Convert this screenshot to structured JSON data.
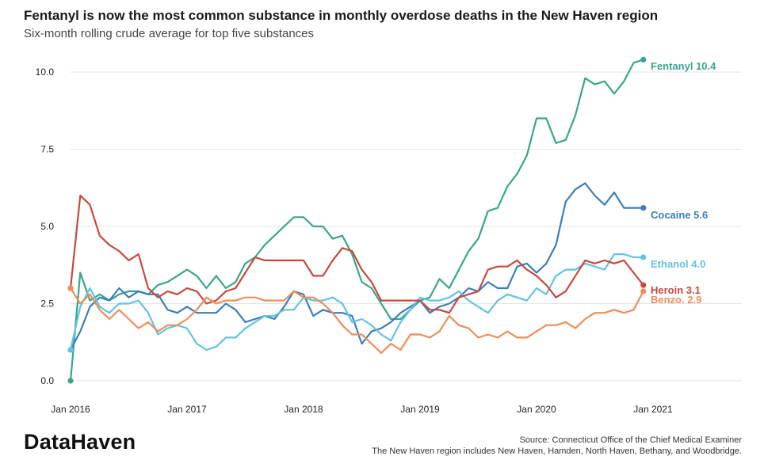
{
  "header": {
    "title": "Fentanyl is now the most common substance in monthly overdose deaths in the New Haven region",
    "subtitle": "Six-month rolling crude average for top five substances"
  },
  "footer": {
    "logo": "DataHaven",
    "source": "Source: Connecticut Office of the Chief Medical Examiner",
    "note": "The New Haven region includes New Haven, Hamden, North Haven, Bethany, and Woodbridge."
  },
  "chart_data": {
    "type": "line",
    "title": "Fentanyl is now the most common substance in monthly overdose deaths in the New Haven region",
    "subtitle": "Six-month rolling crude average for top five substances",
    "xlabel": "",
    "ylabel": "",
    "ylim": [
      0,
      10.5
    ],
    "yticks": [
      0,
      2.5,
      5,
      7.5,
      10
    ],
    "ytick_labels": [
      "0.0",
      "2.5",
      "5.0",
      "7.5",
      "10.0"
    ],
    "xticks": [
      "Jan 2016",
      "Jan 2017",
      "Jan 2018",
      "Jan 2019",
      "Jan 2020",
      "Jan 2021"
    ],
    "x": [
      "2016-01",
      "2016-02",
      "2016-03",
      "2016-04",
      "2016-05",
      "2016-06",
      "2016-07",
      "2016-08",
      "2016-09",
      "2016-10",
      "2016-11",
      "2016-12",
      "2017-01",
      "2017-02",
      "2017-03",
      "2017-04",
      "2017-05",
      "2017-06",
      "2017-07",
      "2017-08",
      "2017-09",
      "2017-10",
      "2017-11",
      "2017-12",
      "2018-01",
      "2018-02",
      "2018-03",
      "2018-04",
      "2018-05",
      "2018-06",
      "2018-07",
      "2018-08",
      "2018-09",
      "2018-10",
      "2018-11",
      "2018-12",
      "2019-01",
      "2019-02",
      "2019-03",
      "2019-04",
      "2019-05",
      "2019-06",
      "2019-07",
      "2019-08",
      "2019-09",
      "2019-10",
      "2019-11",
      "2019-12",
      "2020-01",
      "2020-02",
      "2020-03",
      "2020-04",
      "2020-05",
      "2020-06",
      "2020-07",
      "2020-08",
      "2020-09",
      "2020-10",
      "2020-11",
      "2020-12"
    ],
    "grid": true,
    "legend": "end-of-line labels",
    "series": [
      {
        "name": "Fentanyl",
        "end_label": "Fentanyl 10.4",
        "color": "#3aa58c",
        "values": [
          0.0,
          3.5,
          2.6,
          2.8,
          2.6,
          2.8,
          2.9,
          2.9,
          2.8,
          3.1,
          3.2,
          3.4,
          3.6,
          3.4,
          3.0,
          3.4,
          3.0,
          3.2,
          3.8,
          4.0,
          4.4,
          4.7,
          5.0,
          5.3,
          5.3,
          5.0,
          5.0,
          4.6,
          4.7,
          4.1,
          3.2,
          3.0,
          2.5,
          2.0,
          2.0,
          2.3,
          2.6,
          2.7,
          3.3,
          3.0,
          3.6,
          4.2,
          4.6,
          5.5,
          5.6,
          6.3,
          6.7,
          7.3,
          8.5,
          8.5,
          7.7,
          7.8,
          8.6,
          9.8,
          9.6,
          9.7,
          9.3,
          9.7,
          10.3,
          10.4
        ]
      },
      {
        "name": "Cocaine",
        "end_label": "Cocaine 5.6",
        "color": "#3a7fba",
        "values": [
          1.0,
          1.6,
          2.4,
          2.7,
          2.6,
          3.0,
          2.7,
          2.9,
          2.8,
          2.8,
          2.3,
          2.2,
          2.4,
          2.2,
          2.2,
          2.2,
          2.5,
          2.3,
          1.9,
          2.0,
          2.1,
          2.0,
          2.4,
          2.9,
          2.8,
          2.1,
          2.3,
          2.2,
          2.2,
          2.1,
          1.2,
          1.6,
          1.7,
          1.9,
          2.2,
          2.4,
          2.6,
          2.2,
          2.4,
          2.5,
          2.7,
          3.0,
          2.9,
          3.2,
          3.0,
          3.0,
          3.7,
          3.8,
          3.5,
          3.8,
          4.4,
          5.8,
          6.2,
          6.4,
          6.0,
          5.7,
          6.1,
          5.6,
          5.6,
          5.6
        ]
      },
      {
        "name": "Ethanol",
        "end_label": "Ethanol 4.0",
        "color": "#62c3e3",
        "values": [
          1.0,
          2.4,
          3.0,
          2.4,
          2.2,
          2.5,
          2.5,
          2.6,
          2.2,
          1.5,
          1.7,
          1.8,
          1.7,
          1.2,
          1.0,
          1.1,
          1.4,
          1.4,
          1.7,
          1.9,
          2.1,
          2.1,
          2.3,
          2.3,
          2.7,
          2.6,
          2.6,
          2.7,
          2.5,
          1.9,
          2.0,
          1.8,
          1.5,
          1.3,
          1.9,
          2.3,
          2.7,
          2.6,
          2.6,
          2.7,
          2.9,
          2.6,
          2.4,
          2.2,
          2.6,
          2.8,
          2.7,
          2.6,
          3.0,
          2.8,
          3.4,
          3.6,
          3.6,
          3.8,
          3.7,
          3.6,
          4.1,
          4.1,
          4.0,
          4.0
        ]
      },
      {
        "name": "Heroin",
        "end_label": "Heroin 3.1",
        "color": "#c8493c",
        "values": [
          3.0,
          6.0,
          5.7,
          4.7,
          4.4,
          4.2,
          3.9,
          4.1,
          3.0,
          2.7,
          2.9,
          2.8,
          3.0,
          2.9,
          2.5,
          2.6,
          2.9,
          3.0,
          3.5,
          4.0,
          3.9,
          3.9,
          3.9,
          3.9,
          3.9,
          3.4,
          3.4,
          3.9,
          4.3,
          4.2,
          3.6,
          3.2,
          2.6,
          2.6,
          2.6,
          2.6,
          2.6,
          2.3,
          2.3,
          2.2,
          2.7,
          2.8,
          2.9,
          3.6,
          3.7,
          3.7,
          3.9,
          3.6,
          3.4,
          3.1,
          2.7,
          2.9,
          3.4,
          3.9,
          3.8,
          3.9,
          3.8,
          3.9,
          3.5,
          3.1
        ]
      },
      {
        "name": "Benzo.",
        "end_label": "Benzo. 2.9",
        "color": "#ef8d5b",
        "values": [
          3.0,
          2.5,
          2.8,
          2.3,
          2.0,
          2.3,
          2.0,
          1.7,
          1.9,
          1.6,
          1.8,
          1.8,
          2.0,
          2.3,
          2.7,
          2.5,
          2.6,
          2.6,
          2.7,
          2.7,
          2.6,
          2.6,
          2.6,
          2.9,
          2.7,
          2.7,
          2.5,
          2.2,
          1.8,
          1.5,
          1.5,
          1.2,
          0.9,
          1.2,
          1.0,
          1.5,
          1.5,
          1.4,
          1.6,
          2.1,
          1.8,
          1.7,
          1.4,
          1.5,
          1.4,
          1.6,
          1.4,
          1.4,
          1.6,
          1.8,
          1.8,
          1.9,
          1.7,
          2.0,
          2.2,
          2.2,
          2.3,
          2.2,
          2.3,
          2.9
        ]
      }
    ]
  }
}
